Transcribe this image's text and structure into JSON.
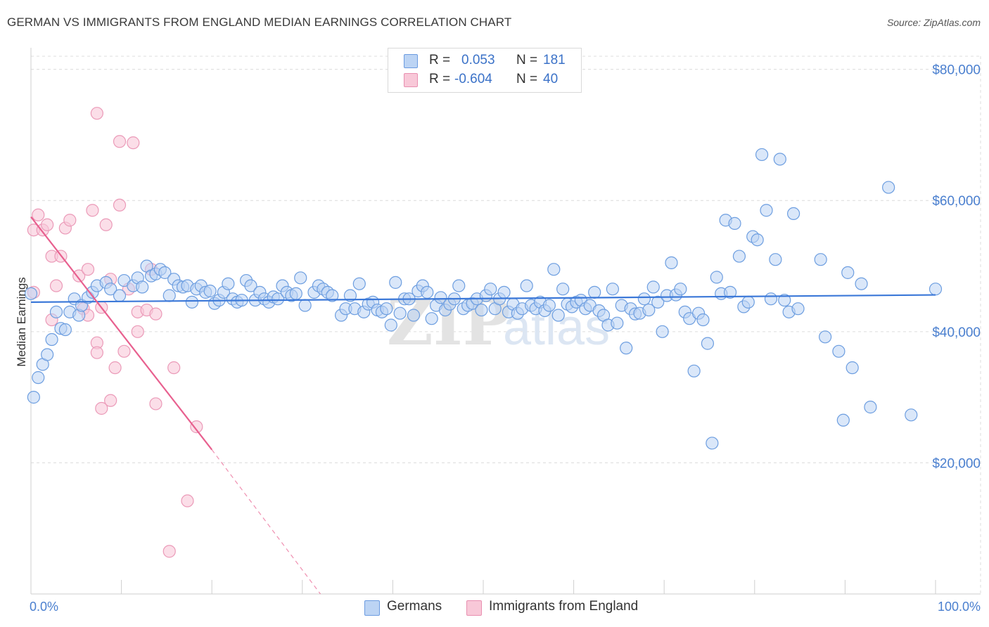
{
  "title": "GERMAN VS IMMIGRANTS FROM ENGLAND MEDIAN EARNINGS CORRELATION CHART",
  "source": "Source: ZipAtlas.com",
  "watermark": {
    "zip": "ZIP",
    "atlas": "atlas"
  },
  "legend": {
    "r_label": "R =",
    "n_label": "N =",
    "rows": [
      {
        "r": "0.053",
        "n": "181",
        "fill": "#bcd4f4",
        "stroke": "#6b9be0"
      },
      {
        "r": "-0.604",
        "n": "40",
        "fill": "#f8c8d8",
        "stroke": "#e88fb0"
      }
    ]
  },
  "bottom_legend": {
    "germans": "Germans",
    "england": "Immigrants from England"
  },
  "chart_data": {
    "type": "scatter",
    "title": "GERMAN VS IMMIGRANTS FROM ENGLAND MEDIAN EARNINGS CORRELATION CHART",
    "xlabel": "",
    "ylabel": "Median Earnings",
    "xlim": [
      0,
      100
    ],
    "ylim": [
      0,
      82000
    ],
    "x_tick_labels": {
      "left": "0.0%",
      "right": "100.0%"
    },
    "y_ticks": [
      20000,
      40000,
      60000,
      80000
    ],
    "y_tick_labels": [
      "$20,000",
      "$40,000",
      "$60,000",
      "$80,000"
    ],
    "grid": true,
    "legend_position": "top-center",
    "colors": {
      "blue": "#3b78d8",
      "blue_fill": "#bcd4f4",
      "pink": "#e8608f",
      "pink_fill": "#f8c8d8"
    },
    "series": [
      {
        "name": "Germans",
        "trend": {
          "x": [
            0,
            100
          ],
          "y": [
            44500,
            45600
          ]
        },
        "points": [
          [
            0.3,
            30000
          ],
          [
            0.8,
            33000
          ],
          [
            1.3,
            35000
          ],
          [
            1.8,
            36500
          ],
          [
            2.3,
            38800
          ],
          [
            2.8,
            43000
          ],
          [
            3.3,
            40500
          ],
          [
            3.8,
            40300
          ],
          [
            4.3,
            43000
          ],
          [
            4.8,
            45000
          ],
          [
            5.3,
            42500
          ],
          [
            5.6,
            44000
          ],
          [
            6.3,
            45200
          ],
          [
            6.8,
            46000
          ],
          [
            7.3,
            47000
          ],
          [
            8.3,
            47500
          ],
          [
            8.8,
            46500
          ],
          [
            9.8,
            45500
          ],
          [
            10.3,
            47800
          ],
          [
            11.3,
            47000
          ],
          [
            11.8,
            48200
          ],
          [
            12.3,
            46800
          ],
          [
            12.8,
            50000
          ],
          [
            13.3,
            48500
          ],
          [
            13.8,
            48800
          ],
          [
            14.3,
            49500
          ],
          [
            14.8,
            49000
          ],
          [
            15.3,
            45500
          ],
          [
            15.8,
            48000
          ],
          [
            16.3,
            47000
          ],
          [
            16.8,
            46800
          ],
          [
            17.3,
            47000
          ],
          [
            17.8,
            44500
          ],
          [
            18.3,
            46500
          ],
          [
            18.8,
            47000
          ],
          [
            19.3,
            46000
          ],
          [
            19.8,
            46200
          ],
          [
            20.3,
            44300
          ],
          [
            20.8,
            44800
          ],
          [
            21.3,
            46000
          ],
          [
            21.8,
            47300
          ],
          [
            22.3,
            45000
          ],
          [
            22.8,
            44500
          ],
          [
            23.3,
            44800
          ],
          [
            23.8,
            47800
          ],
          [
            24.3,
            47000
          ],
          [
            24.8,
            44800
          ],
          [
            25.3,
            46000
          ],
          [
            25.8,
            45000
          ],
          [
            26.3,
            44500
          ],
          [
            26.8,
            45300
          ],
          [
            27.3,
            45000
          ],
          [
            27.8,
            47000
          ],
          [
            28.3,
            46000
          ],
          [
            28.8,
            45500
          ],
          [
            29.3,
            45800
          ],
          [
            29.8,
            48200
          ],
          [
            30.3,
            44000
          ],
          [
            31.3,
            46000
          ],
          [
            31.8,
            47000
          ],
          [
            32.3,
            46500
          ],
          [
            32.8,
            46000
          ],
          [
            33.3,
            45500
          ],
          [
            34.3,
            42500
          ],
          [
            34.8,
            43500
          ],
          [
            35.3,
            45500
          ],
          [
            35.8,
            43500
          ],
          [
            36.3,
            47300
          ],
          [
            36.8,
            43000
          ],
          [
            37.3,
            44200
          ],
          [
            37.8,
            44500
          ],
          [
            38.3,
            43300
          ],
          [
            38.8,
            43000
          ],
          [
            39.3,
            43500
          ],
          [
            39.8,
            41000
          ],
          [
            40.3,
            47500
          ],
          [
            40.8,
            42800
          ],
          [
            41.3,
            45000
          ],
          [
            41.8,
            45000
          ],
          [
            42.3,
            42500
          ],
          [
            42.8,
            46200
          ],
          [
            43.3,
            47000
          ],
          [
            43.8,
            46000
          ],
          [
            44.3,
            42000
          ],
          [
            44.8,
            44000
          ],
          [
            45.3,
            45200
          ],
          [
            45.8,
            43300
          ],
          [
            46.3,
            44200
          ],
          [
            46.8,
            45000
          ],
          [
            47.3,
            47000
          ],
          [
            47.8,
            43500
          ],
          [
            48.3,
            44000
          ],
          [
            48.8,
            44300
          ],
          [
            49.3,
            45000
          ],
          [
            49.8,
            43300
          ],
          [
            50.3,
            45500
          ],
          [
            50.8,
            46500
          ],
          [
            51.3,
            43500
          ],
          [
            51.8,
            45000
          ],
          [
            52.3,
            46000
          ],
          [
            52.8,
            43000
          ],
          [
            53.3,
            44200
          ],
          [
            53.8,
            42800
          ],
          [
            54.3,
            43500
          ],
          [
            54.8,
            47000
          ],
          [
            55.3,
            44000
          ],
          [
            55.8,
            43500
          ],
          [
            56.3,
            44500
          ],
          [
            56.8,
            43200
          ],
          [
            57.3,
            44000
          ],
          [
            57.8,
            49500
          ],
          [
            58.3,
            42500
          ],
          [
            58.8,
            46500
          ],
          [
            59.3,
            44200
          ],
          [
            59.8,
            43800
          ],
          [
            60.3,
            44500
          ],
          [
            60.8,
            44800
          ],
          [
            61.3,
            43500
          ],
          [
            61.8,
            44000
          ],
          [
            62.3,
            46000
          ],
          [
            62.8,
            43200
          ],
          [
            63.3,
            42500
          ],
          [
            63.8,
            41000
          ],
          [
            64.3,
            46500
          ],
          [
            64.8,
            41300
          ],
          [
            65.3,
            44000
          ],
          [
            65.8,
            37500
          ],
          [
            66.3,
            43500
          ],
          [
            66.8,
            42700
          ],
          [
            67.3,
            42800
          ],
          [
            67.8,
            45000
          ],
          [
            68.3,
            43300
          ],
          [
            68.8,
            46800
          ],
          [
            69.3,
            44500
          ],
          [
            69.8,
            40000
          ],
          [
            70.3,
            45500
          ],
          [
            70.8,
            50500
          ],
          [
            71.3,
            45600
          ],
          [
            71.8,
            46500
          ],
          [
            72.3,
            43000
          ],
          [
            72.8,
            42000
          ],
          [
            73.3,
            34000
          ],
          [
            73.8,
            42800
          ],
          [
            74.3,
            41800
          ],
          [
            74.8,
            38200
          ],
          [
            75.3,
            23000
          ],
          [
            75.8,
            48300
          ],
          [
            76.3,
            45800
          ],
          [
            76.8,
            57000
          ],
          [
            77.3,
            46000
          ],
          [
            77.8,
            56500
          ],
          [
            78.3,
            51500
          ],
          [
            78.8,
            43800
          ],
          [
            79.3,
            44500
          ],
          [
            79.8,
            54500
          ],
          [
            80.3,
            54000
          ],
          [
            80.8,
            67000
          ],
          [
            81.3,
            58500
          ],
          [
            81.8,
            45000
          ],
          [
            82.3,
            51000
          ],
          [
            82.8,
            66300
          ],
          [
            83.3,
            44800
          ],
          [
            83.8,
            43000
          ],
          [
            84.3,
            58000
          ],
          [
            84.8,
            43500
          ],
          [
            87.3,
            51000
          ],
          [
            87.8,
            39200
          ],
          [
            89.3,
            37000
          ],
          [
            89.8,
            26500
          ],
          [
            90.3,
            49000
          ],
          [
            90.8,
            34500
          ],
          [
            91.8,
            47300
          ],
          [
            92.8,
            28500
          ],
          [
            94.8,
            62000
          ],
          [
            97.3,
            27300
          ],
          [
            100.0,
            46500
          ],
          [
            0.0,
            45800
          ]
        ]
      },
      {
        "name": "Immigrants from England",
        "trend": {
          "x": [
            0,
            20
          ],
          "y": [
            57500,
            22000
          ]
        },
        "trend_dashed": {
          "x": [
            20,
            32
          ],
          "y": [
            22000,
            0
          ]
        },
        "points": [
          [
            0.3,
            55500
          ],
          [
            0.8,
            57800
          ],
          [
            1.3,
            55500
          ],
          [
            1.8,
            56300
          ],
          [
            2.3,
            51500
          ],
          [
            2.8,
            47000
          ],
          [
            2.3,
            41800
          ],
          [
            3.3,
            51500
          ],
          [
            3.8,
            55800
          ],
          [
            4.3,
            57000
          ],
          [
            5.3,
            48500
          ],
          [
            5.8,
            43500
          ],
          [
            6.3,
            49500
          ],
          [
            6.3,
            42500
          ],
          [
            7.3,
            38300
          ],
          [
            7.3,
            36800
          ],
          [
            6.8,
            58500
          ],
          [
            7.8,
            28300
          ],
          [
            8.3,
            56300
          ],
          [
            8.8,
            48000
          ],
          [
            8.8,
            29500
          ],
          [
            9.3,
            34500
          ],
          [
            9.8,
            69000
          ],
          [
            10.3,
            37000
          ],
          [
            10.8,
            46500
          ],
          [
            11.3,
            68800
          ],
          [
            11.8,
            40000
          ],
          [
            11.8,
            43000
          ],
          [
            12.8,
            43300
          ],
          [
            13.3,
            49500
          ],
          [
            13.8,
            42700
          ],
          [
            13.8,
            29000
          ],
          [
            7.3,
            73300
          ],
          [
            15.3,
            6500
          ],
          [
            15.8,
            34500
          ],
          [
            17.3,
            14200
          ],
          [
            18.3,
            25500
          ],
          [
            9.8,
            59300
          ],
          [
            7.8,
            43700
          ],
          [
            0.3,
            46000
          ]
        ]
      }
    ]
  }
}
